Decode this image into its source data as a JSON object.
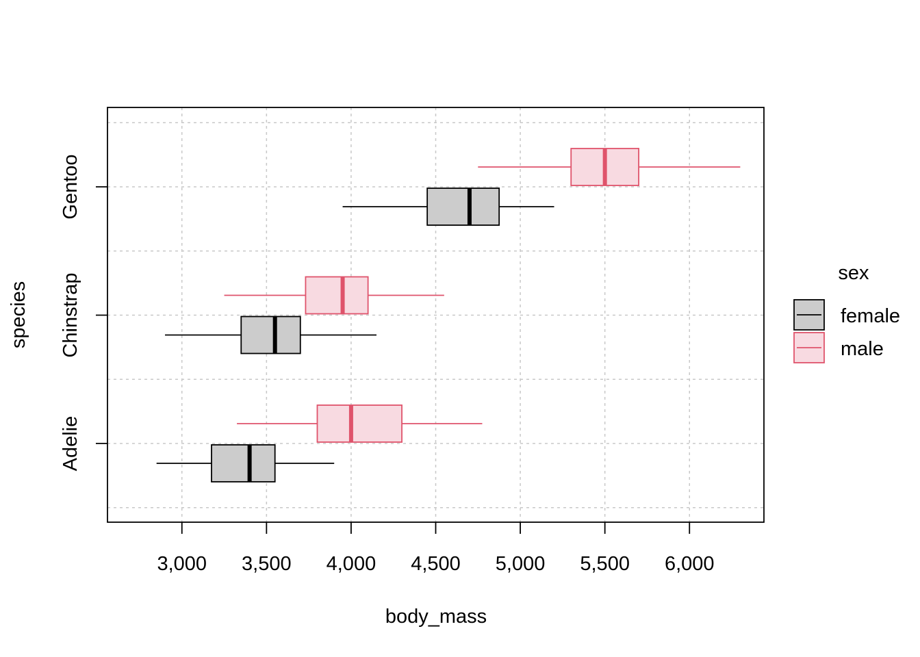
{
  "chart_data": {
    "type": "boxplot",
    "orientation": "horizontal",
    "title": "",
    "xlabel": "body_mass",
    "ylabel": "species",
    "xlim": [
      2560,
      6440
    ],
    "x_ticks": [
      3000,
      3500,
      4000,
      4500,
      5000,
      5500,
      6000
    ],
    "x_tick_labels": [
      "3,000",
      "3,500",
      "4,000",
      "4,500",
      "5,000",
      "5,500",
      "6,000"
    ],
    "categories": [
      "Adelie",
      "Chinstrap",
      "Gentoo"
    ],
    "grid": true,
    "legend": {
      "title": "sex",
      "placement": "right"
    },
    "series": [
      {
        "name": "female",
        "fill_color": "#cccccc",
        "line_color": "#000000",
        "boxes": [
          {
            "category": "Adelie",
            "whisker_low": 2850,
            "q1": 3175,
            "median": 3400,
            "q3": 3550,
            "whisker_high": 3900
          },
          {
            "category": "Chinstrap",
            "whisker_low": 2900,
            "q1": 3350,
            "median": 3550,
            "q3": 3700,
            "whisker_high": 4150
          },
          {
            "category": "Gentoo",
            "whisker_low": 3950,
            "q1": 4450,
            "median": 4700,
            "q3": 4875,
            "whisker_high": 5200
          }
        ]
      },
      {
        "name": "male",
        "fill_color": "#f8dae1",
        "line_color": "#df536b",
        "boxes": [
          {
            "category": "Adelie",
            "whisker_low": 3325,
            "q1": 3800,
            "median": 4000,
            "q3": 4300,
            "whisker_high": 4775
          },
          {
            "category": "Chinstrap",
            "whisker_low": 3250,
            "q1": 3731,
            "median": 3950,
            "q3": 4100,
            "whisker_high": 4550
          },
          {
            "category": "Gentoo",
            "whisker_low": 4750,
            "q1": 5300,
            "median": 5500,
            "q3": 5700,
            "whisker_high": 6300
          }
        ]
      }
    ]
  }
}
